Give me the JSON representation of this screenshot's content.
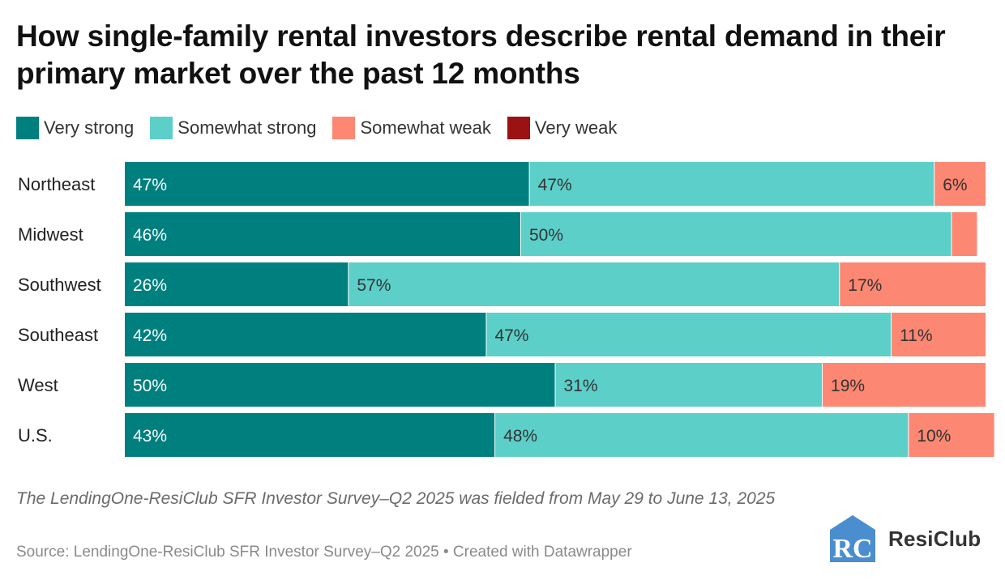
{
  "title": "How single-family rental investors describe rental demand in their primary market over the past 12 months",
  "note": "The LendingOne-ResiClub SFR Investor Survey–Q2 2025 was fielded from May 29 to June 13, 2025",
  "source": "Source: LendingOne-ResiClub SFR Investor Survey–Q2 2025 • Created with Datawrapper",
  "logo": {
    "text": "ResiClub",
    "mark_text": "RC"
  },
  "colors": {
    "very_strong": "#007f7f",
    "somewhat_strong": "#5ccfc9",
    "somewhat_weak": "#fc8772",
    "very_weak": "#9b1212",
    "label_on_dark": "#ffffff",
    "label_on_light": "#333333",
    "logo_blue": "#4a8ecf"
  },
  "legend": [
    {
      "label": "Very strong",
      "color": "#007f7f"
    },
    {
      "label": "Somewhat strong",
      "color": "#5ccfc9"
    },
    {
      "label": "Somewhat weak",
      "color": "#fc8772"
    },
    {
      "label": "Very weak",
      "color": "#9b1212"
    }
  ],
  "chart_data": {
    "type": "bar",
    "orientation": "horizontal",
    "stacked": true,
    "categories": [
      "Northeast",
      "Midwest",
      "Southwest",
      "Southeast",
      "West",
      "U.S."
    ],
    "series": [
      {
        "name": "Very strong",
        "color": "#007f7f",
        "values": [
          47,
          46,
          26,
          42,
          50,
          43
        ],
        "labels": [
          "47%",
          "46%",
          "26%",
          "42%",
          "50%",
          "43%"
        ]
      },
      {
        "name": "Somewhat strong",
        "color": "#5ccfc9",
        "values": [
          47,
          50,
          57,
          47,
          31,
          48
        ],
        "labels": [
          "47%",
          "50%",
          "57%",
          "47%",
          "31%",
          "48%"
        ]
      },
      {
        "name": "Somewhat weak",
        "color": "#fc8772",
        "values": [
          6,
          3,
          17,
          11,
          19,
          10
        ],
        "labels": [
          "6%",
          "",
          "17%",
          "11%",
          "19%",
          "10%"
        ]
      },
      {
        "name": "Very weak",
        "color": "#9b1212",
        "values": [
          0,
          0,
          0,
          0,
          0,
          0
        ],
        "labels": [
          "",
          "",
          "",
          "",
          "",
          ""
        ]
      }
    ],
    "xlim": [
      0,
      100
    ],
    "grid": false,
    "legend_position": "top-left"
  }
}
